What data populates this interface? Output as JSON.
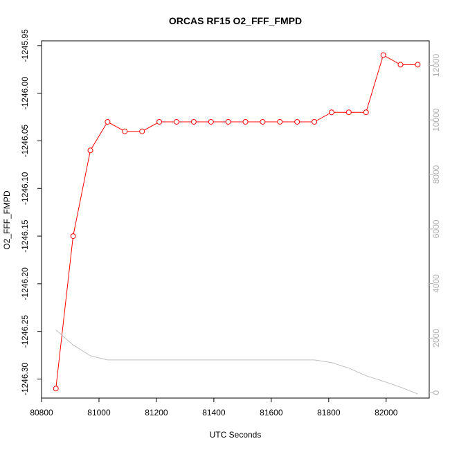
{
  "chart_data": {
    "type": "line",
    "title": "ORCAS RF15 O2_FFF_FMPD",
    "xlabel": "UTC Seconds",
    "ylabel": "O2_FFF_FMPD",
    "xlim": [
      80800,
      82150
    ],
    "ylim": [
      -1246.32,
      -1245.945
    ],
    "y2lim": [
      -200,
      12900
    ],
    "x_ticks": [
      80800,
      81000,
      81200,
      81400,
      81600,
      81800,
      82000
    ],
    "y_ticks": [
      -1246.3,
      -1246.25,
      -1246.2,
      -1246.15,
      -1246.1,
      -1246.05,
      -1246.0,
      -1245.95
    ],
    "y_tick_labels": [
      "-1246.30",
      "-1246.25",
      "-1246.20",
      "-1246.15",
      "-1246.10",
      "-1246.05",
      "-1246.00",
      "-1245.95"
    ],
    "y2_ticks": [
      0,
      2000,
      4000,
      6000,
      8000,
      10000,
      12000
    ],
    "series": [
      {
        "axis": "left",
        "color": "#ff0000",
        "marker": "open-circle",
        "x": [
          80850,
          80910,
          80970,
          81030,
          81090,
          81150,
          81210,
          81270,
          81330,
          81390,
          81450,
          81510,
          81570,
          81630,
          81690,
          81750,
          81810,
          81870,
          81930,
          81990,
          82050,
          82110
        ],
        "y": [
          -1246.31,
          -1246.15,
          -1246.06,
          -1246.03,
          -1246.04,
          -1246.04,
          -1246.03,
          -1246.03,
          -1246.03,
          -1246.03,
          -1246.03,
          -1246.03,
          -1246.03,
          -1246.03,
          -1246.03,
          -1246.03,
          -1246.02,
          -1246.02,
          -1246.02,
          -1245.96,
          -1245.97,
          -1245.97
        ]
      },
      {
        "axis": "right",
        "color": "#c0c0c0",
        "marker": "none",
        "x": [
          80850,
          80910,
          80970,
          81030,
          81090,
          81150,
          81210,
          81270,
          81330,
          81390,
          81450,
          81510,
          81570,
          81630,
          81690,
          81750,
          81810,
          81870,
          81930,
          81990,
          82050,
          82110
        ],
        "y": [
          2300,
          1750,
          1350,
          1200,
          1200,
          1200,
          1200,
          1200,
          1200,
          1200,
          1200,
          1200,
          1200,
          1200,
          1200,
          1200,
          1100,
          900,
          620,
          420,
          200,
          -50
        ]
      }
    ]
  }
}
